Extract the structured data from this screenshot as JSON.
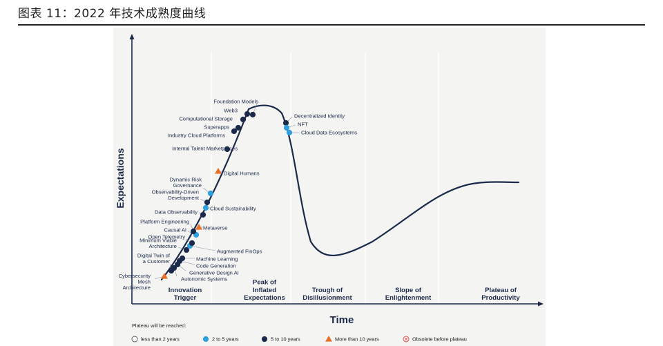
{
  "caption": "图表 11：2022 年技术成熟度曲线",
  "axes": {
    "y_label": "Expectations",
    "x_label": "Time"
  },
  "phases": [
    {
      "lines": [
        "Innovation",
        "Trigger"
      ]
    },
    {
      "lines": [
        "Peak of",
        "Inflated",
        "Expectations"
      ]
    },
    {
      "lines": [
        "Trough of",
        "Disillusionment"
      ]
    },
    {
      "lines": [
        "Slope of",
        "Enlightenment"
      ]
    },
    {
      "lines": [
        "Plateau of",
        "Productivity"
      ]
    }
  ],
  "legend": {
    "title": "Plateau will be reached:",
    "items": [
      {
        "label": "less than 2 years",
        "marker": "hollow-circle"
      },
      {
        "label": "2 to 5 years",
        "marker": "circle-light-blue"
      },
      {
        "label": "5 to 10 years",
        "marker": "circle-dark-navy"
      },
      {
        "label": "More than 10 years",
        "marker": "triangle-orange"
      },
      {
        "label": "Obsolete before plateau",
        "marker": "circled-x"
      }
    ]
  },
  "colors": {
    "curve": "#1b2a4a",
    "dark_navy": "#1b2a4a",
    "light_blue": "#2f9fdc",
    "orange": "#e8702a",
    "obsolete": "#d9534f"
  },
  "technologies": [
    {
      "name": "Cybersecurity Mesh Architecture",
      "lines": [
        "Cybersecurity",
        "Mesh",
        "Architecture"
      ],
      "category": "more-than-10"
    },
    {
      "name": "Autonomic Systems",
      "lines": [
        "Autonomic Systems"
      ],
      "category": "5-to-10"
    },
    {
      "name": "Digital Twin of a Customer",
      "lines": [
        "Digital Twin of",
        "a Customer"
      ],
      "category": "5-to-10"
    },
    {
      "name": "Generative Design AI",
      "lines": [
        "Generative Design AI"
      ],
      "category": "5-to-10"
    },
    {
      "name": "Code Generation",
      "lines": [
        "Code Generation"
      ],
      "category": "5-to-10"
    },
    {
      "name": "Machine Learning",
      "lines": [
        "Machine Learning"
      ],
      "category": "5-to-10"
    },
    {
      "name": "Minimum Viable Architecture",
      "lines": [
        "Minimum Viable",
        "Architecture"
      ],
      "category": "5-to-10"
    },
    {
      "name": "Augmented FinOps",
      "lines": [
        "Augmented FinOps"
      ],
      "category": "2-to-5"
    },
    {
      "name": "Open Telemetry",
      "lines": [
        "Open Telemetry"
      ],
      "category": "5-to-10"
    },
    {
      "name": "Causal AI",
      "lines": [
        "Causal AI"
      ],
      "category": "2-to-5"
    },
    {
      "name": "Metaverse",
      "lines": [
        "Metaverse"
      ],
      "category": "more-than-10"
    },
    {
      "name": "Platform Engineering",
      "lines": [
        "Platform Engineering"
      ],
      "category": "5-to-10"
    },
    {
      "name": "Data Observability",
      "lines": [
        "Data Observability"
      ],
      "category": "5-to-10"
    },
    {
      "name": "Cloud Sustainability",
      "lines": [
        "Cloud Sustainability"
      ],
      "category": "2-to-5"
    },
    {
      "name": "Observability-Driven Development",
      "lines": [
        "Observability-Driven",
        "Development"
      ],
      "category": "5-to-10"
    },
    {
      "name": "Dynamic Risk Governance",
      "lines": [
        "Dynamic Risk",
        "Governance"
      ],
      "category": "2-to-5"
    },
    {
      "name": "Digital Humans",
      "lines": [
        "Digital Humans"
      ],
      "category": "more-than-10"
    },
    {
      "name": "Internal Talent Marketplaces",
      "lines": [
        "Internal Talent Marketplaces"
      ],
      "category": "5-to-10"
    },
    {
      "name": "Industry Cloud Platforms",
      "lines": [
        "Industry Cloud Platforms"
      ],
      "category": "5-to-10"
    },
    {
      "name": "Superapps",
      "lines": [
        "Superapps"
      ],
      "category": "5-to-10"
    },
    {
      "name": "Computational Storage",
      "lines": [
        "Computational Storage"
      ],
      "category": "5-to-10"
    },
    {
      "name": "Web3",
      "lines": [
        "Web3"
      ],
      "category": "5-to-10"
    },
    {
      "name": "Foundation Models",
      "lines": [
        "Foundation Models"
      ],
      "category": "5-to-10"
    },
    {
      "name": "Decentralized Identity",
      "lines": [
        "Decentralized Identity"
      ],
      "category": "5-to-10"
    },
    {
      "name": "NFT",
      "lines": [
        "NFT"
      ],
      "category": "2-to-5"
    },
    {
      "name": "Cloud Data Ecosystems",
      "lines": [
        "Cloud Data Ecosystems"
      ],
      "category": "2-to-5"
    }
  ]
}
